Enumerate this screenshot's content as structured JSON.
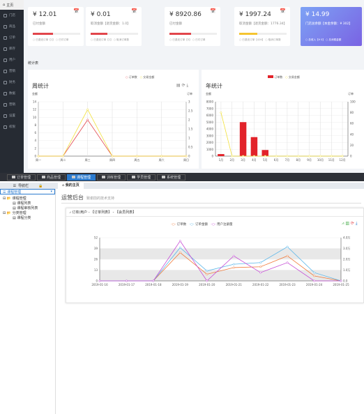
{
  "sidebar": {
    "home": "主页",
    "items": [
      "门店",
      "商品",
      "订单",
      "库存",
      "用户",
      "营销",
      "财务",
      "数据",
      "营销",
      "设置",
      "权限"
    ]
  },
  "cards": [
    {
      "value": "¥ 12.01",
      "sub": "已付金额",
      "legend": "○ 已退还订单【1】 ○ 已付订单",
      "bar": 0.42,
      "color": "#e2454b"
    },
    {
      "value": "¥ 0.01",
      "sub": "取消金额【退货金额：1.0】",
      "legend": "○ 已退还订单【1】 ○ 取消订单数",
      "bar": 0.35,
      "color": "#e2454b"
    },
    {
      "value": "¥ 8920.86",
      "sub": "已付金额",
      "legend": "○ 已退还订单【5】 ○ 已付订单",
      "bar": 0.45,
      "color": "#e2454b"
    },
    {
      "value": "¥ 1997.24",
      "sub": "取消金额【退货金额：1776.34】",
      "legend": "○ 已退还订单【426】 ○ 取消订单数",
      "bar": 0.38,
      "color": "#f5c531"
    },
    {
      "value": "¥ 14.99",
      "sub": "门店总余额【本金余额：¥ 302】",
      "legend": "○ 总收入【¥ 0】 ○ 总消费金额",
      "bar": 0,
      "color": "#ffffff"
    }
  ],
  "stats_title": "统计表",
  "left_panel": {
    "title": "周统计",
    "legend": [
      "订单数",
      "交易金额"
    ],
    "ylabel_left": "金额",
    "ylabel_right": "订单",
    "icons": [
      "doc-icon",
      "refresh-icon",
      "download-icon"
    ]
  },
  "right_panel": {
    "title": "年统计",
    "legend": [
      "订单数",
      "交易金额"
    ],
    "ylabel_left": "金额",
    "ylabel_right": "订单"
  },
  "topnav": [
    "订单管理",
    "商品管理",
    "课程管理",
    "训练管理",
    "学员管理",
    "系统管理"
  ],
  "topnav_active": 2,
  "navhead": "导航栏",
  "tabhead": "我的主页",
  "leftnav": {
    "selected": "课程管理",
    "tree": [
      {
        "label": "课程管理",
        "children": [
          "课程列表",
          "课程审核列表"
        ]
      },
      {
        "label": "分类管理",
        "children": [
          "课程分类"
        ]
      }
    ]
  },
  "main": {
    "title": "运营后台",
    "subtitle": "致谢前的技术支持",
    "chart_header": "订单/用户 - 【订单列表】 - 【会员列表】",
    "chart_legend": [
      "订单数",
      "订单金额",
      "用户注册量"
    ]
  },
  "chart_data": [
    {
      "type": "line",
      "title": "周统计",
      "categories": [
        "周一",
        "周二",
        "周三",
        "周四",
        "周五",
        "周六",
        "周日"
      ],
      "y_left": {
        "ylim": [
          0,
          14
        ],
        "ticks": [
          0,
          2,
          4,
          6,
          8,
          10,
          12,
          14
        ]
      },
      "y_right": {
        "ylim": [
          0,
          3
        ],
        "ticks": [
          0,
          0.5,
          1,
          1.5,
          2,
          2.5,
          3
        ]
      },
      "series": [
        {
          "name": "订单数",
          "axis": "right",
          "color": "#e2454b",
          "values": [
            0,
            0,
            2,
            0,
            0,
            0,
            0
          ]
        },
        {
          "name": "交易金额",
          "axis": "left",
          "color": "#f2e13a",
          "values": [
            0,
            0,
            12,
            0,
            0,
            0,
            0
          ]
        }
      ]
    },
    {
      "type": "bar",
      "title": "年统计",
      "categories": [
        "1月",
        "2月",
        "3月",
        "4月",
        "5月",
        "6月",
        "7月",
        "8月",
        "9月",
        "10月",
        "11月",
        "12月"
      ],
      "y_left": {
        "ylim": [
          0,
          8000
        ],
        "ticks": [
          0,
          1000,
          2000,
          3000,
          4000,
          5000,
          6000,
          7000,
          8000
        ]
      },
      "y_right": {
        "ylim": [
          0,
          100
        ],
        "ticks": [
          0,
          20,
          40,
          60,
          80,
          100
        ]
      },
      "series": [
        {
          "name": "订单数",
          "type": "bar",
          "axis": "left",
          "color": "#e2232a",
          "values": [
            300,
            0,
            5000,
            2800,
            900,
            0,
            0,
            0,
            0,
            0,
            0,
            0
          ]
        },
        {
          "name": "交易金额",
          "type": "line",
          "axis": "right",
          "color": "#f2e13a",
          "values": [
            80,
            0,
            0,
            0,
            0,
            0,
            0,
            0,
            0,
            0,
            0,
            0
          ]
        }
      ]
    },
    {
      "type": "line",
      "title": "订单/用户",
      "categories": [
        "2019-01-16",
        "2019-01-17",
        "2019-01-18",
        "2019-01-19",
        "2019-01-20",
        "2019-01-21",
        "2019-01-22",
        "2019-01-23",
        "2019-01-24",
        "2019-01-25"
      ],
      "y_left": {
        "ylim": [
          0,
          52
        ],
        "ticks": [
          0,
          13,
          26,
          39,
          52
        ]
      },
      "y_right": {
        "ylim": [
          0,
          4
        ],
        "ticks": [
          "0.0",
          "1.0万",
          "2.0万",
          "3.0万",
          "4.0万"
        ],
        "tick_values": [
          0,
          1,
          2,
          3,
          4
        ]
      },
      "series": [
        {
          "name": "订单数",
          "axis": "left",
          "color": "#f07a3a",
          "values": [
            0,
            0,
            0,
            34,
            8,
            16,
            17,
            30,
            6,
            0
          ]
        },
        {
          "name": "订单金额",
          "axis": "left",
          "color": "#5bb7ea",
          "values": [
            0,
            0,
            0,
            40,
            12,
            20,
            22,
            41,
            10,
            0
          ]
        },
        {
          "name": "用户注册量",
          "axis": "left",
          "color": "#c64fd6",
          "values": [
            0,
            0,
            0,
            48,
            0,
            30,
            10,
            22,
            0,
            0
          ]
        }
      ]
    }
  ]
}
